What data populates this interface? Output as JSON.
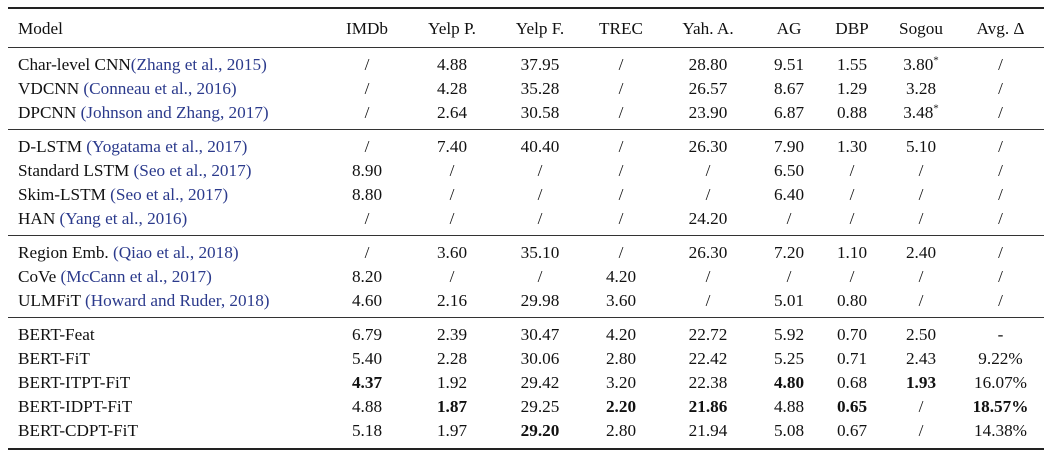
{
  "columns": [
    "Model",
    "IMDb",
    "Yelp P.",
    "Yelp F.",
    "TREC",
    "Yah. A.",
    "AG",
    "DBP",
    "Sogou",
    "Avg. Δ"
  ],
  "groups": [
    {
      "rows": [
        {
          "name": "Char-level CNN",
          "cite": "(Zhang et al., 2015)",
          "sep": "",
          "cells": [
            "/",
            "4.88",
            "37.95",
            "/",
            "28.80",
            "9.51",
            "1.55",
            "3.80",
            "/"
          ],
          "bold": [],
          "notes": {
            "7": "*"
          }
        },
        {
          "name": "VDCNN",
          "cite": "(Conneau et al., 2016)",
          "sep": " ",
          "cells": [
            "/",
            "4.28",
            "35.28",
            "/",
            "26.57",
            "8.67",
            "1.29",
            "3.28",
            "/"
          ],
          "bold": [],
          "notes": {}
        },
        {
          "name": "DPCNN",
          "cite": "(Johnson and Zhang, 2017)",
          "sep": " ",
          "cells": [
            "/",
            "2.64",
            "30.58",
            "/",
            "23.90",
            "6.87",
            "0.88",
            "3.48",
            "/"
          ],
          "bold": [],
          "notes": {
            "7": "*"
          }
        }
      ]
    },
    {
      "rows": [
        {
          "name": "D-LSTM",
          "cite": "(Yogatama et al., 2017)",
          "sep": " ",
          "cells": [
            "/",
            "7.40",
            "40.40",
            "/",
            "26.30",
            "7.90",
            "1.30",
            "5.10",
            "/"
          ],
          "bold": [],
          "notes": {}
        },
        {
          "name": "Standard LSTM",
          "cite": "(Seo et al., 2017)",
          "sep": " ",
          "cells": [
            "8.90",
            "/",
            "/",
            "/",
            "/",
            "6.50",
            "/",
            "/",
            "/"
          ],
          "bold": [],
          "notes": {}
        },
        {
          "name": "Skim-LSTM",
          "cite": "(Seo et al., 2017)",
          "sep": " ",
          "cells": [
            "8.80",
            "/",
            "/",
            "/",
            "/",
            "6.40",
            "/",
            "/",
            "/"
          ],
          "bold": [],
          "notes": {}
        },
        {
          "name": "HAN",
          "cite": "(Yang et al., 2016)",
          "sep": " ",
          "cells": [
            "/",
            "/",
            "/",
            "/",
            "24.20",
            "/",
            "/",
            "/",
            "/"
          ],
          "bold": [],
          "notes": {}
        }
      ]
    },
    {
      "rows": [
        {
          "name": "Region Emb.",
          "cite": "(Qiao et al., 2018)",
          "sep": " ",
          "cells": [
            "/",
            "3.60",
            "35.10",
            "/",
            "26.30",
            "7.20",
            "1.10",
            "2.40",
            "/"
          ],
          "bold": [],
          "notes": {}
        },
        {
          "name": "CoVe",
          "cite": "(McCann et al., 2017)",
          "sep": " ",
          "cells": [
            "8.20",
            "/",
            "/",
            "4.20",
            "/",
            "/",
            "/",
            "/",
            "/"
          ],
          "bold": [],
          "notes": {}
        },
        {
          "name": "ULMFiT",
          "cite": "(Howard and Ruder, 2018)",
          "sep": " ",
          "cells": [
            "4.60",
            "2.16",
            "29.98",
            "3.60",
            "/",
            "5.01",
            "0.80",
            "/",
            "/"
          ],
          "bold": [],
          "notes": {}
        }
      ]
    },
    {
      "rows": [
        {
          "name": "BERT-Feat",
          "cite": "",
          "sep": "",
          "cells": [
            "6.79",
            "2.39",
            "30.47",
            "4.20",
            "22.72",
            "5.92",
            "0.70",
            "2.50",
            "-"
          ],
          "bold": [],
          "notes": {}
        },
        {
          "name": "BERT-FiT",
          "cite": "",
          "sep": "",
          "cells": [
            "5.40",
            "2.28",
            "30.06",
            "2.80",
            "22.42",
            "5.25",
            "0.71",
            "2.43",
            "9.22%"
          ],
          "bold": [],
          "notes": {}
        },
        {
          "name": "BERT-ITPT-FiT",
          "cite": "",
          "sep": "",
          "cells": [
            "4.37",
            "1.92",
            "29.42",
            "3.20",
            "22.38",
            "4.80",
            "0.68",
            "1.93",
            "16.07%"
          ],
          "bold": [
            0,
            5,
            7
          ],
          "notes": {}
        },
        {
          "name": "BERT-IDPT-FiT",
          "cite": "",
          "sep": "",
          "cells": [
            "4.88",
            "1.87",
            "29.25",
            "2.20",
            "21.86",
            "4.88",
            "0.65",
            "/",
            "18.57%"
          ],
          "bold": [
            1,
            3,
            4,
            6,
            8
          ],
          "notes": {}
        },
        {
          "name": "BERT-CDPT-FiT",
          "cite": "",
          "sep": "",
          "cells": [
            "5.18",
            "1.97",
            "29.20",
            "2.80",
            "21.94",
            "5.08",
            "0.67",
            "/",
            "14.38%"
          ],
          "bold": [
            2
          ],
          "notes": {}
        }
      ]
    }
  ],
  "colors": {
    "citation": "#2b3a8c",
    "text": "#111111",
    "rule": "#222222"
  }
}
